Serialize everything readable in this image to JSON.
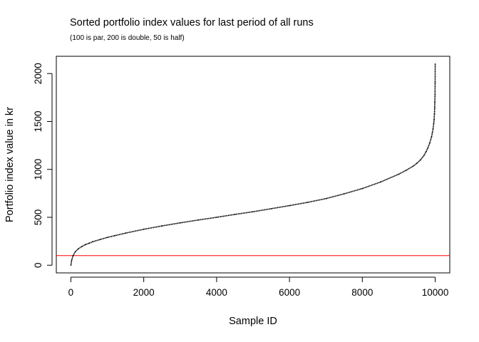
{
  "chart_data": {
    "type": "scatter",
    "title": "Sorted portfolio index values for last period of all runs",
    "subtitle": "(100 is par, 200 is double, 50 is half)",
    "xlabel": "Sample ID",
    "ylabel": "Portfolio index value in kr",
    "xlim": [
      -400,
      10400
    ],
    "ylim": [
      -80,
      2180
    ],
    "x_ticks": [
      0,
      2000,
      4000,
      6000,
      8000,
      10000
    ],
    "y_ticks": [
      0,
      500,
      1000,
      1500,
      2000
    ],
    "x_tick_labels": [
      "0",
      "2000",
      "4000",
      "6000",
      "8000",
      "10000"
    ],
    "y_tick_labels": [
      "0",
      "500",
      "1000",
      "1500",
      "2000"
    ],
    "grid": false,
    "legend": "none",
    "series": [
      {
        "color": "#000000",
        "marker": "point",
        "x": [
          1,
          20,
          60,
          120,
          200,
          300,
          400,
          500,
          600,
          800,
          1000,
          1200,
          1500,
          2000,
          2500,
          3000,
          3500,
          4000,
          4500,
          5000,
          5500,
          6000,
          6500,
          7000,
          7500,
          8000,
          8500,
          9000,
          9200,
          9400,
          9500,
          9600,
          9700,
          9750,
          9800,
          9850,
          9900,
          9920,
          9940,
          9960,
          9970,
          9980,
          9985,
          9990,
          9995,
          9998,
          10000
        ],
        "y": [
          0,
          50,
          100,
          140,
          170,
          195,
          215,
          230,
          245,
          268,
          290,
          308,
          335,
          375,
          410,
          442,
          472,
          500,
          530,
          558,
          590,
          622,
          656,
          695,
          745,
          800,
          868,
          950,
          990,
          1035,
          1065,
          1100,
          1150,
          1185,
          1225,
          1275,
          1340,
          1380,
          1420,
          1480,
          1520,
          1580,
          1640,
          1700,
          1780,
          1900,
          2100
        ]
      }
    ],
    "reference_lines": [
      {
        "orientation": "horizontal",
        "value": 100,
        "color": "#ff0000"
      }
    ]
  }
}
